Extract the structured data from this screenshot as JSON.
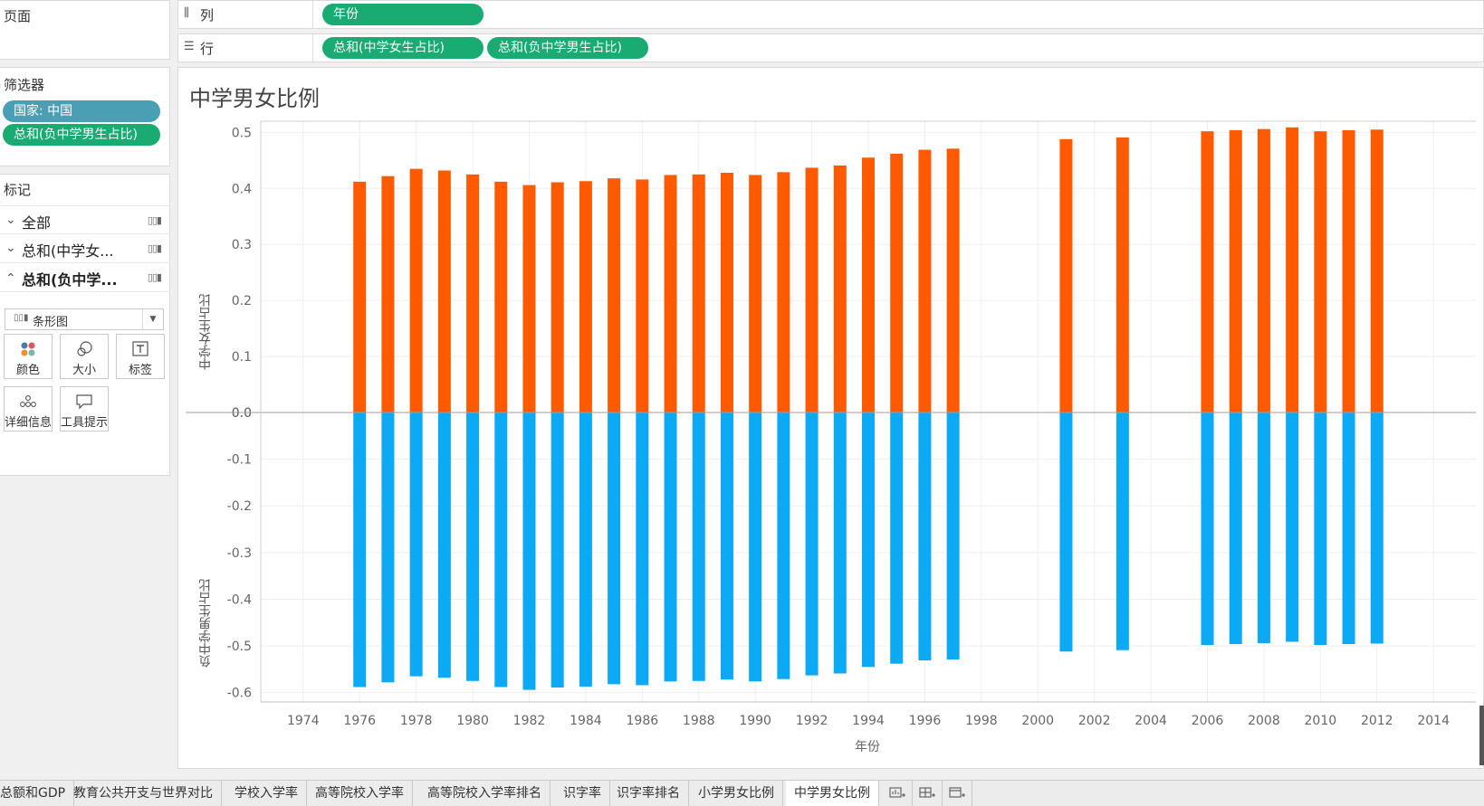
{
  "left": {
    "pages_title": "页面",
    "filters_title": "筛选器",
    "filters": [
      "国家: 中国",
      "总和(负中学男生占比)"
    ],
    "marks_title": "标记",
    "mark_rows": [
      {
        "label": "全部",
        "chevron": "›",
        "expanded": false
      },
      {
        "label": "总和(中学女...",
        "chevron": "›",
        "expanded": false
      },
      {
        "label": "总和(负中学...",
        "chevron": "‹",
        "expanded": true
      }
    ],
    "mark_type": "条形图",
    "mark_buttons": [
      "颜色",
      "大小",
      "标签",
      "详细信息",
      "工具提示"
    ]
  },
  "shelves": {
    "columns_label": "列",
    "columns_pills": [
      "年份"
    ],
    "rows_label": "行",
    "rows_pills": [
      "总和(中学女生占比)",
      "总和(负中学男生占比)"
    ]
  },
  "view": {
    "title": "中学男女比例"
  },
  "chart_data": {
    "type": "bar",
    "xlabel": "年份",
    "x_ticks": [
      1974,
      1976,
      1978,
      1980,
      1982,
      1984,
      1986,
      1988,
      1990,
      1992,
      1994,
      1996,
      1998,
      2000,
      2002,
      2004,
      2006,
      2008,
      2010,
      2012,
      2014
    ],
    "xlim": [
      1972.5,
      2015.5
    ],
    "colors": {
      "female": "#ff5a00",
      "male": "#0ca9f4"
    },
    "panes": [
      {
        "ylabel": "中学女生占比",
        "ylim": [
          0,
          0.52
        ],
        "y_ticks": [
          "0.5",
          "0.4",
          "0.3",
          "0.2",
          "0.1",
          "0.0"
        ],
        "y_tick_values": [
          0.5,
          0.4,
          0.3,
          0.2,
          0.1,
          0.0
        ]
      },
      {
        "ylabel": "负中学男生占比",
        "ylim": [
          -0.62,
          0
        ],
        "y_ticks": [
          "0.0",
          "-0.1",
          "-0.2",
          "-0.3",
          "-0.4",
          "-0.5",
          "-0.6"
        ],
        "y_tick_values": [
          0.0,
          -0.1,
          -0.2,
          -0.3,
          -0.4,
          -0.5,
          -0.6
        ]
      }
    ],
    "series": [
      {
        "years": [
          1976,
          1977,
          1978,
          1979,
          1980,
          1981,
          1982,
          1983,
          1984,
          1985,
          1986,
          1987,
          1988,
          1989,
          1990,
          1991,
          1992,
          1993,
          1994,
          1995,
          1996,
          1997,
          2001,
          2003,
          2006,
          2007,
          2008,
          2009,
          2010,
          2011,
          2012
        ],
        "values": [
          0.412,
          0.422,
          0.435,
          0.432,
          0.425,
          0.412,
          0.406,
          0.411,
          0.413,
          0.418,
          0.416,
          0.424,
          0.425,
          0.428,
          0.424,
          0.429,
          0.437,
          0.441,
          0.455,
          0.462,
          0.469,
          0.471,
          0.488,
          0.491,
          0.502,
          0.504,
          0.506,
          0.509,
          0.502,
          0.504,
          0.505
        ]
      },
      {
        "years": [
          1976,
          1977,
          1978,
          1979,
          1980,
          1981,
          1982,
          1983,
          1984,
          1985,
          1986,
          1987,
          1988,
          1989,
          1990,
          1991,
          1992,
          1993,
          1994,
          1995,
          1996,
          1997,
          2001,
          2003,
          2006,
          2007,
          2008,
          2009,
          2010,
          2011,
          2012
        ],
        "values": [
          -0.588,
          -0.578,
          -0.565,
          -0.568,
          -0.575,
          -0.588,
          -0.594,
          -0.589,
          -0.587,
          -0.582,
          -0.584,
          -0.576,
          -0.575,
          -0.572,
          -0.576,
          -0.571,
          -0.563,
          -0.559,
          -0.545,
          -0.538,
          -0.531,
          -0.529,
          -0.512,
          -0.509,
          -0.498,
          -0.496,
          -0.494,
          -0.491,
          -0.498,
          -0.496,
          -0.495
        ]
      }
    ]
  },
  "tabs": [
    {
      "label": "总额和GDP",
      "active": false
    },
    {
      "label": "教育公共开支与世界对比",
      "active": false
    },
    {
      "label": "学校入学率",
      "active": false
    },
    {
      "label": "高等院校入学率",
      "active": false
    },
    {
      "label": "高等院校入学率排名",
      "active": false
    },
    {
      "label": "识字率",
      "active": false
    },
    {
      "label": "识字率排名",
      "active": false
    },
    {
      "label": "小学男女比例",
      "active": false
    },
    {
      "label": "中学男女比例",
      "active": true
    }
  ]
}
